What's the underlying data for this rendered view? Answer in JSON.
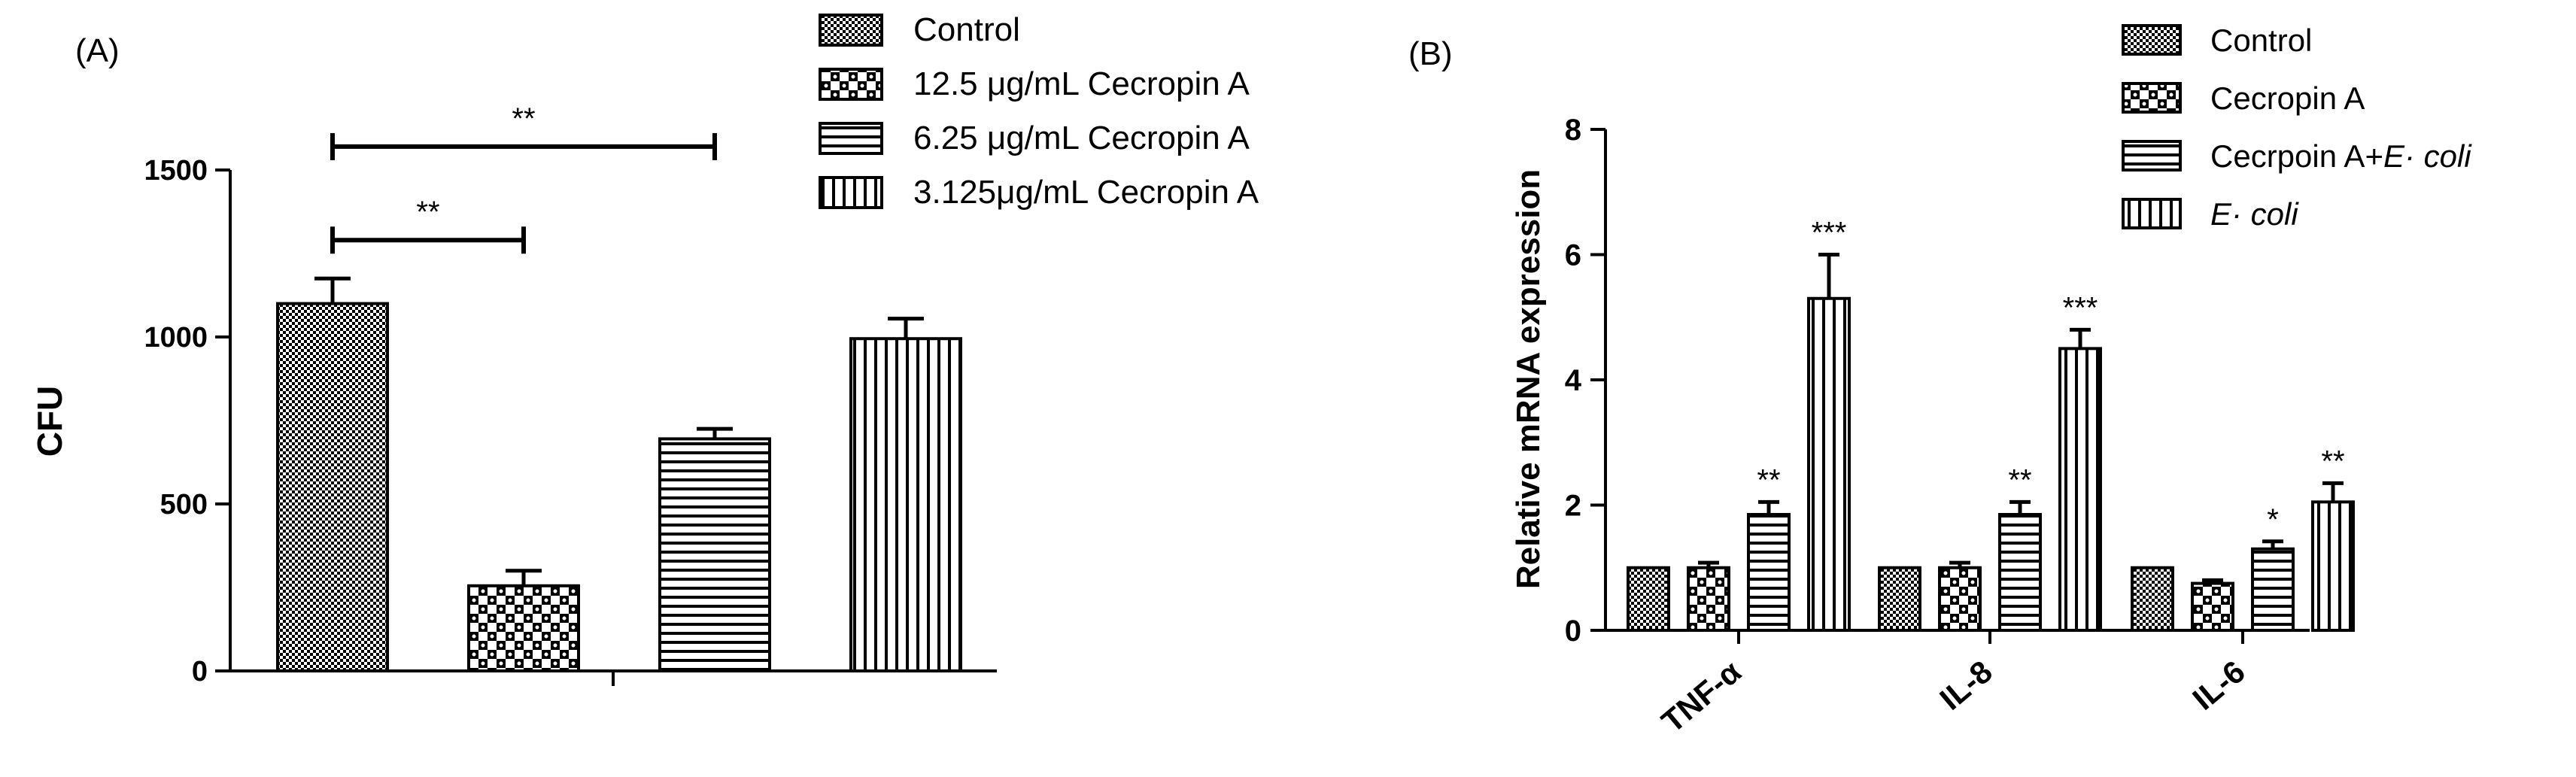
{
  "chart_data": [
    {
      "type": "bar",
      "panel_label": "(A)",
      "title": "",
      "xlabel": "",
      "ylabel": "CFU",
      "ylim": [
        0,
        1500
      ],
      "yticks": [
        "0",
        "500",
        "1000",
        "1500"
      ],
      "grid": false,
      "legend_position": "top-right",
      "series": [
        {
          "name": "Control",
          "pattern": "checker-fine",
          "values": [
            1100
          ],
          "errors": [
            75
          ]
        },
        {
          "name": "12.5 μg/mL Cecropin A",
          "pattern": "checker-large",
          "values": [
            255
          ],
          "errors": [
            45
          ]
        },
        {
          "name": "6.25 μg/mL Cecropin A",
          "pattern": "horizontal-lines",
          "values": [
            695
          ],
          "errors": [
            30
          ]
        },
        {
          "name": "3.125μg/mL Cecropin A",
          "pattern": "vertical-lines",
          "values": [
            995
          ],
          "errors": [
            60
          ]
        }
      ],
      "annotations": [
        {
          "text": "**",
          "from_bar": 0,
          "to_bar": 1,
          "level": 1290
        },
        {
          "text": "**",
          "from_bar": 0,
          "to_bar": 2,
          "level": 1570
        }
      ]
    },
    {
      "type": "bar",
      "panel_label": "(B)",
      "title": "",
      "xlabel": "",
      "ylabel": "Relative mRNA expression",
      "ylim": [
        0,
        8
      ],
      "yticks": [
        "0",
        "2",
        "4",
        "6",
        "8"
      ],
      "grid": false,
      "legend_position": "top-right",
      "categories": [
        "TNF-α",
        "IL-8",
        "IL-6"
      ],
      "series": [
        {
          "name": "Control",
          "pattern": "checker-fine",
          "values": [
            1.0,
            1.0,
            1.0
          ],
          "errors": [
            0,
            0,
            0
          ],
          "marks": [
            "",
            "",
            ""
          ]
        },
        {
          "name": "Cecropin A",
          "pattern": "checker-large",
          "values": [
            1.0,
            1.0,
            0.75
          ],
          "errors": [
            0.08,
            0.08,
            0.05
          ],
          "marks": [
            "",
            "",
            ""
          ]
        },
        {
          "name": "Cecrpoin A+E· coli",
          "name_plain": "Cecrpoin A+",
          "name_italic": "E· coli",
          "pattern": "horizontal-lines",
          "values": [
            1.85,
            1.85,
            1.3
          ],
          "errors": [
            0.2,
            0.2,
            0.12
          ],
          "marks": [
            "**",
            "**",
            "*"
          ]
        },
        {
          "name": "E· coli",
          "name_plain": "",
          "name_italic": "E· coli",
          "pattern": "vertical-lines",
          "values": [
            5.3,
            4.5,
            2.05
          ],
          "errors": [
            0.7,
            0.3,
            0.3
          ],
          "marks": [
            "***",
            "***",
            "**"
          ]
        }
      ]
    }
  ]
}
